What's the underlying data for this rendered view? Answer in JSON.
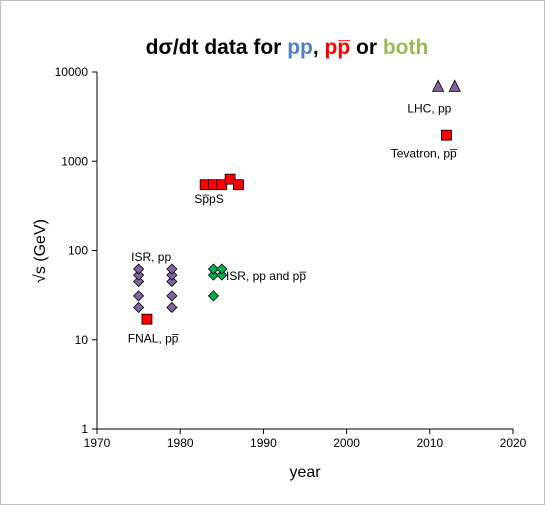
{
  "chart_data": {
    "type": "scatter",
    "title": {
      "parts": [
        {
          "text": "dσ/dt data for ",
          "color": "#000000"
        },
        {
          "text": "pp",
          "color": "#4f81bd"
        },
        {
          "text": ", ",
          "color": "#000000"
        },
        {
          "text": "pp̅",
          "color": "#ff0000"
        },
        {
          "text": " or ",
          "color": "#000000"
        },
        {
          "text": "both",
          "color": "#9bbb59"
        }
      ]
    },
    "xlabel": "year",
    "ylabel": "√s (GeV)",
    "xlim": [
      1970,
      2020
    ],
    "ylim": [
      1,
      10000
    ],
    "y_scale": "log",
    "x_ticks": [
      "1970",
      "1980",
      "1990",
      "2000",
      "2010",
      "2020"
    ],
    "y_ticks": [
      "1",
      "10",
      "100",
      "1000",
      "10000"
    ],
    "grid": false,
    "legend": "none",
    "series": [
      {
        "marker": "diamond",
        "color": "#8064a2",
        "points": [
          {
            "x": 1975,
            "y": 23
          },
          {
            "x": 1975,
            "y": 31
          },
          {
            "x": 1975,
            "y": 45
          },
          {
            "x": 1975,
            "y": 53
          },
          {
            "x": 1975,
            "y": 62
          },
          {
            "x": 1979,
            "y": 23
          },
          {
            "x": 1979,
            "y": 31
          },
          {
            "x": 1979,
            "y": 45
          },
          {
            "x": 1979,
            "y": 53
          },
          {
            "x": 1979,
            "y": 62
          }
        ]
      },
      {
        "marker": "square",
        "color": "#ff0000",
        "points": [
          {
            "x": 1976,
            "y": 17
          },
          {
            "x": 1983,
            "y": 546
          },
          {
            "x": 1984,
            "y": 546
          },
          {
            "x": 1985,
            "y": 546
          },
          {
            "x": 1986,
            "y": 630
          },
          {
            "x": 1987,
            "y": 546
          },
          {
            "x": 2012,
            "y": 1960
          }
        ]
      },
      {
        "marker": "diamond",
        "color": "#00b050",
        "points": [
          {
            "x": 1984,
            "y": 31
          },
          {
            "x": 1984,
            "y": 53
          },
          {
            "x": 1984,
            "y": 62
          },
          {
            "x": 1985,
            "y": 53
          },
          {
            "x": 1985,
            "y": 62
          }
        ]
      },
      {
        "marker": "triangle",
        "color": "#8064a2",
        "points": [
          {
            "x": 2011,
            "y": 7000
          },
          {
            "x": 2013,
            "y": 7000
          }
        ]
      }
    ],
    "annotations": [
      {
        "text": "ISR, pp",
        "x": 1974.1,
        "y": 76
      },
      {
        "text": "FNAL, pp̅",
        "x": 1973.7,
        "y": 9.3
      },
      {
        "text": "Sp̅pS",
        "x": 1981.7,
        "y": 340
      },
      {
        "text": "ISR, pp and pp̅",
        "x": 1985.5,
        "y": 47
      },
      {
        "text": "LHC, pp",
        "x": 2007.3,
        "y": 3500
      },
      {
        "text": "Tevatron, pp̅",
        "x": 2005.3,
        "y": 1100
      }
    ]
  }
}
